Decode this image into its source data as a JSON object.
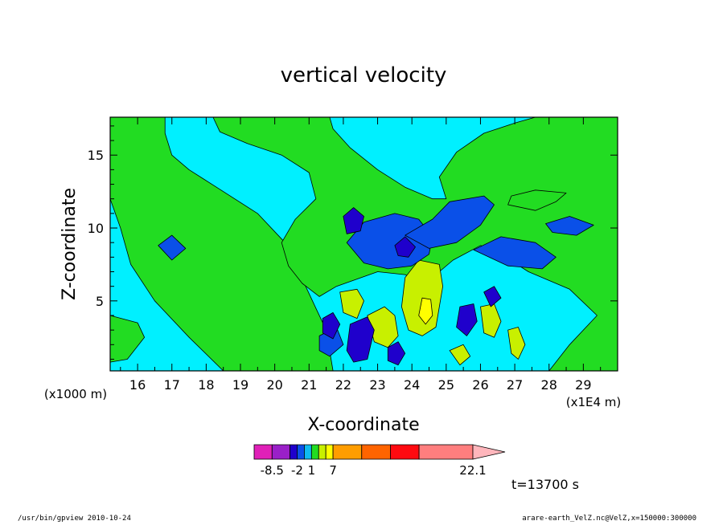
{
  "chart_data": {
    "type": "heatmap",
    "title": "vertical velocity",
    "xlabel": "X-coordinate",
    "ylabel": "Z-coordinate",
    "x_scale_note": "(x1E4 m)",
    "y_scale_note": "(x1000 m)",
    "xlim": [
      15.2,
      30.0
    ],
    "ylim": [
      0.2,
      17.6
    ],
    "x_ticks": [
      "16",
      "17",
      "18",
      "19",
      "20",
      "21",
      "22",
      "23",
      "24",
      "25",
      "26",
      "27",
      "28",
      "29"
    ],
    "x_tick_values": [
      16,
      17,
      18,
      19,
      20,
      21,
      22,
      23,
      24,
      25,
      26,
      27,
      28,
      29
    ],
    "y_ticks": [
      "5",
      "10",
      "15"
    ],
    "y_tick_values": [
      5,
      10,
      15
    ],
    "regions": [
      {
        "level": "pos_small",
        "poly": [
          [
            15.2,
            17.6
          ],
          [
            16.8,
            17.6
          ],
          [
            16.8,
            16.5
          ],
          [
            17.0,
            15.0
          ],
          [
            17.5,
            14.0
          ],
          [
            18.3,
            12.8
          ],
          [
            19.5,
            11.0
          ],
          [
            20.3,
            9.0
          ],
          [
            20.7,
            7.0
          ],
          [
            21.0,
            5.5
          ],
          [
            21.2,
            4.5
          ],
          [
            21.5,
            3.0
          ],
          [
            21.7,
            0.2
          ],
          [
            18.5,
            0.2
          ],
          [
            17.5,
            2.5
          ],
          [
            16.5,
            5.0
          ],
          [
            15.8,
            7.5
          ],
          [
            15.5,
            10.0
          ],
          [
            15.2,
            12.0
          ]
        ]
      },
      {
        "level": "pos_small",
        "poly": [
          [
            18.2,
            17.6
          ],
          [
            21.6,
            17.6
          ],
          [
            21.7,
            16.8
          ],
          [
            22.2,
            15.5
          ],
          [
            23.0,
            14.0
          ],
          [
            23.8,
            12.8
          ],
          [
            24.6,
            12.0
          ],
          [
            25.0,
            12.0
          ],
          [
            24.8,
            13.5
          ],
          [
            25.3,
            15.2
          ],
          [
            26.1,
            16.5
          ],
          [
            27.0,
            17.2
          ],
          [
            27.6,
            17.6
          ],
          [
            30.0,
            17.6
          ],
          [
            30.0,
            0.2
          ],
          [
            28.0,
            0.2
          ],
          [
            28.6,
            2.0
          ],
          [
            29.4,
            4.0
          ],
          [
            28.6,
            5.8
          ],
          [
            27.4,
            7.0
          ],
          [
            26.6,
            8.2
          ],
          [
            26.0,
            8.8
          ],
          [
            25.2,
            7.8
          ],
          [
            24.8,
            7.0
          ],
          [
            24.4,
            6.2
          ],
          [
            23.8,
            6.8
          ],
          [
            23.0,
            7.0
          ],
          [
            22.4,
            6.5
          ],
          [
            21.8,
            6.0
          ],
          [
            21.3,
            5.3
          ],
          [
            20.8,
            6.2
          ],
          [
            20.4,
            7.4
          ],
          [
            20.2,
            9.0
          ],
          [
            20.6,
            10.6
          ],
          [
            21.2,
            12.0
          ],
          [
            21.0,
            13.8
          ],
          [
            20.2,
            15.0
          ],
          [
            19.2,
            15.8
          ],
          [
            18.4,
            16.6
          ]
        ]
      },
      {
        "level": "pos_small",
        "poly": [
          [
            15.2,
            4.0
          ],
          [
            16.0,
            3.5
          ],
          [
            16.2,
            2.5
          ],
          [
            15.7,
            1.0
          ],
          [
            15.2,
            0.8
          ]
        ]
      },
      {
        "level": "pos_small",
        "poly": [
          [
            26.8,
            11.6
          ],
          [
            27.6,
            11.2
          ],
          [
            28.2,
            11.8
          ],
          [
            28.5,
            12.4
          ],
          [
            27.6,
            12.6
          ],
          [
            26.9,
            12.2
          ]
        ]
      },
      {
        "level": "pos_mid",
        "poly": [
          [
            24.2,
            7.8
          ],
          [
            24.8,
            7.5
          ],
          [
            24.9,
            6.0
          ],
          [
            24.7,
            3.2
          ],
          [
            24.3,
            2.6
          ],
          [
            23.9,
            3.0
          ],
          [
            23.7,
            4.6
          ],
          [
            23.8,
            6.6
          ]
        ]
      },
      {
        "level": "pos_mid",
        "poly": [
          [
            22.7,
            4.0
          ],
          [
            23.2,
            4.6
          ],
          [
            23.5,
            4.0
          ],
          [
            23.6,
            2.6
          ],
          [
            23.3,
            1.8
          ],
          [
            22.9,
            2.2
          ]
        ]
      },
      {
        "level": "pos_mid",
        "poly": [
          [
            21.9,
            5.6
          ],
          [
            22.4,
            5.8
          ],
          [
            22.6,
            5.0
          ],
          [
            22.4,
            3.8
          ],
          [
            22.0,
            4.2
          ]
        ]
      },
      {
        "level": "pos_mid",
        "poly": [
          [
            26.0,
            4.6
          ],
          [
            26.4,
            4.8
          ],
          [
            26.6,
            3.6
          ],
          [
            26.4,
            2.5
          ],
          [
            26.1,
            2.8
          ]
        ]
      },
      {
        "level": "pos_mid",
        "poly": [
          [
            26.8,
            3.0
          ],
          [
            27.1,
            3.2
          ],
          [
            27.3,
            2.0
          ],
          [
            27.1,
            1.0
          ],
          [
            26.9,
            1.4
          ]
        ]
      },
      {
        "level": "pos_mid",
        "poly": [
          [
            25.1,
            1.6
          ],
          [
            25.5,
            2.0
          ],
          [
            25.7,
            1.2
          ],
          [
            25.4,
            0.6
          ]
        ]
      },
      {
        "level": "pos_high",
        "poly": [
          [
            24.3,
            5.2
          ],
          [
            24.55,
            5.1
          ],
          [
            24.6,
            4.0
          ],
          [
            24.4,
            3.4
          ],
          [
            24.2,
            4.0
          ]
        ]
      },
      {
        "level": "neg_small",
        "poly": [
          [
            22.1,
            9.0
          ],
          [
            22.6,
            10.4
          ],
          [
            23.5,
            11.0
          ],
          [
            24.2,
            10.6
          ],
          [
            24.6,
            9.4
          ],
          [
            24.5,
            8.2
          ],
          [
            24.0,
            7.4
          ],
          [
            23.3,
            7.2
          ],
          [
            22.6,
            7.6
          ]
        ]
      },
      {
        "level": "neg_small",
        "poly": [
          [
            23.8,
            9.5
          ],
          [
            24.6,
            10.6
          ],
          [
            25.1,
            11.8
          ],
          [
            26.1,
            12.2
          ],
          [
            26.4,
            11.6
          ],
          [
            26.0,
            10.2
          ],
          [
            25.3,
            9.0
          ],
          [
            24.5,
            8.6
          ]
        ]
      },
      {
        "level": "neg_small",
        "poly": [
          [
            25.8,
            8.5
          ],
          [
            26.6,
            9.4
          ],
          [
            27.6,
            9.0
          ],
          [
            28.2,
            8.0
          ],
          [
            27.8,
            7.2
          ],
          [
            26.8,
            7.4
          ]
        ]
      },
      {
        "level": "neg_small",
        "poly": [
          [
            27.9,
            10.3
          ],
          [
            28.6,
            10.8
          ],
          [
            29.3,
            10.2
          ],
          [
            28.8,
            9.5
          ],
          [
            28.1,
            9.7
          ]
        ]
      },
      {
        "level": "neg_small",
        "poly": [
          [
            16.6,
            8.8
          ],
          [
            17.0,
            9.5
          ],
          [
            17.4,
            8.6
          ],
          [
            17.0,
            7.8
          ]
        ]
      },
      {
        "level": "neg_small",
        "poly": [
          [
            21.3,
            2.6
          ],
          [
            21.8,
            3.2
          ],
          [
            22.0,
            2.0
          ],
          [
            21.6,
            1.2
          ],
          [
            21.3,
            1.6
          ]
        ]
      },
      {
        "level": "neg_mid",
        "poly": [
          [
            22.2,
            3.4
          ],
          [
            22.7,
            3.9
          ],
          [
            22.9,
            3.0
          ],
          [
            22.7,
            1.0
          ],
          [
            22.3,
            0.8
          ],
          [
            22.1,
            1.6
          ]
        ]
      },
      {
        "level": "neg_mid",
        "poly": [
          [
            21.4,
            3.8
          ],
          [
            21.7,
            4.2
          ],
          [
            21.9,
            3.4
          ],
          [
            21.7,
            2.4
          ],
          [
            21.4,
            2.8
          ]
        ]
      },
      {
        "level": "neg_mid",
        "poly": [
          [
            22.0,
            10.8
          ],
          [
            22.3,
            11.4
          ],
          [
            22.6,
            10.8
          ],
          [
            22.5,
            9.8
          ],
          [
            22.1,
            9.6
          ]
        ]
      },
      {
        "level": "neg_mid",
        "poly": [
          [
            23.5,
            8.8
          ],
          [
            23.8,
            9.4
          ],
          [
            24.1,
            8.7
          ],
          [
            23.9,
            8.0
          ],
          [
            23.6,
            8.1
          ]
        ]
      },
      {
        "level": "neg_mid",
        "poly": [
          [
            23.3,
            1.8
          ],
          [
            23.6,
            2.2
          ],
          [
            23.8,
            1.4
          ],
          [
            23.6,
            0.6
          ],
          [
            23.3,
            0.9
          ]
        ]
      },
      {
        "level": "neg_mid",
        "poly": [
          [
            25.4,
            4.6
          ],
          [
            25.8,
            4.8
          ],
          [
            25.9,
            3.6
          ],
          [
            25.6,
            2.6
          ],
          [
            25.3,
            3.2
          ]
        ]
      },
      {
        "level": "neg_mid",
        "poly": [
          [
            26.1,
            5.6
          ],
          [
            26.4,
            6.0
          ],
          [
            26.6,
            5.2
          ],
          [
            26.3,
            4.6
          ]
        ]
      }
    ],
    "colorbar": {
      "colors": [
        "#e020b8",
        "#9a20c8",
        "#1f00cc",
        "#0a50e8",
        "#0fbbf0",
        "#22dc22",
        "#c8f000",
        "#ffff00",
        "#ff9d00",
        "#ff6400",
        "#ff0a10",
        "#ff7e7e",
        "#ffb6bc"
      ],
      "widths": [
        1,
        1,
        0.4,
        0.4,
        0.4,
        0.4,
        0.4,
        0.4,
        1.6,
        1.6,
        1.6,
        3.0
      ],
      "labels": [
        {
          "text": "-8.5",
          "boundary": 1
        },
        {
          "text": "-2",
          "boundary": 3
        },
        {
          "text": "1",
          "boundary": 5
        },
        {
          "text": "7",
          "boundary": 8
        },
        {
          "text": "22.1",
          "boundary": 12
        }
      ]
    },
    "level_colors": {
      "neg_mid": "#1f00cc",
      "neg_small": "#0a50e8",
      "background": "#00f0ff",
      "pos_small": "#22dc22",
      "pos_mid": "#c8f000",
      "pos_high": "#ffff00"
    },
    "time_label": "t=13700  s",
    "footer_left": "/usr/bin/gpview   2010-10-24",
    "footer_right": "arare-earth_VelZ.nc@VelZ,x=150000:300000"
  }
}
